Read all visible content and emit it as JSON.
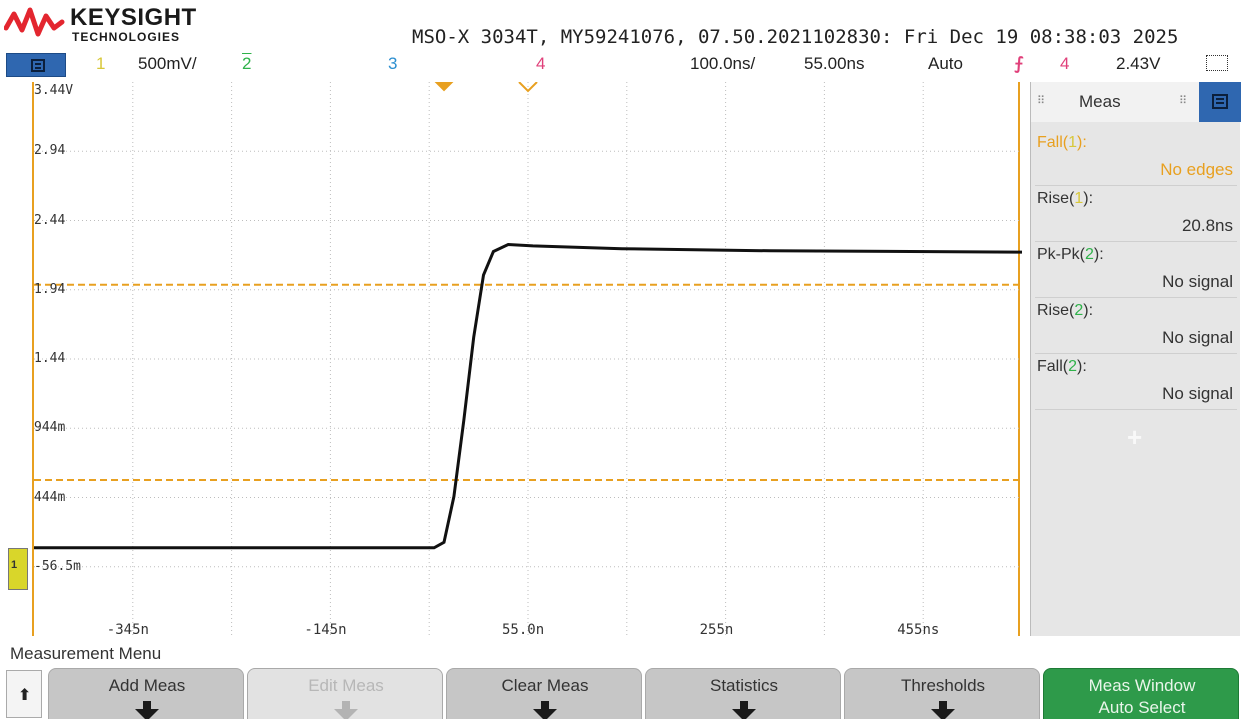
{
  "header": {
    "brand": "KEYSIGHT",
    "brand_sub": "TECHNOLOGIES",
    "info": "MSO-X 3034T, MY59241076, 07.50.2021102830: Fri Dec 19 08:38:03 2025"
  },
  "status_bar": {
    "ch1_label": "1",
    "ch1_scale": "500mV/",
    "ch2_label": "2",
    "ch3_label": "3",
    "ch4_label": "4",
    "timebase": "100.0ns/",
    "delay": "55.00ns",
    "trigger_mode": "Auto",
    "trigger_source": "4",
    "trigger_level": "2.43V"
  },
  "colors": {
    "ch1": "#d8c83a",
    "ch2": "#2fb24a",
    "ch3": "#2c8fd0",
    "ch4": "#e0407a",
    "trigger": "#e8a020",
    "trace": "#111111",
    "accent_blue": "#2f67b0",
    "softkey_green": "#2e9a4a"
  },
  "chart_data": {
    "type": "line",
    "title": "",
    "xlabel": "",
    "ylabel": "",
    "x_tick_labels": [
      "-345n",
      "-145n",
      "55.0n",
      "255n",
      "455ns"
    ],
    "y_tick_labels": [
      "3.44V",
      "2.94",
      "2.44",
      "1.94",
      "1.44",
      "944m",
      "444m",
      "-56.5m"
    ],
    "xlim": [
      -445,
      555
    ],
    "ylim": [
      -556.5,
      3443.5
    ],
    "grid": true,
    "cursors_mV": [
      1980,
      570
    ],
    "series": [
      {
        "x": [
          -445,
          -60,
          -40,
          -30,
          -20,
          -10,
          0,
          10,
          20,
          35,
          60,
          150,
          300,
          555
        ],
        "y": [
          80,
          80,
          80,
          120,
          450,
          1000,
          1600,
          2050,
          2220,
          2270,
          2260,
          2240,
          2225,
          2215
        ]
      }
    ]
  },
  "meas_panel": {
    "title": "Meas",
    "items": [
      {
        "name": "Fall",
        "channel": "1",
        "value": "No edges"
      },
      {
        "name": "Rise",
        "channel": "1",
        "value": "20.8ns"
      },
      {
        "name": "Pk-Pk",
        "channel": "2",
        "value": "No signal"
      },
      {
        "name": "Rise",
        "channel": "2",
        "value": "No signal"
      },
      {
        "name": "Fall",
        "channel": "2",
        "value": "No signal"
      }
    ],
    "add_symbol": "+"
  },
  "softkeys": {
    "menu_label": "Measurement Menu",
    "back_symbol": "⬆",
    "keys": [
      {
        "label": "Add Meas"
      },
      {
        "label": "Edit Meas"
      },
      {
        "label": "Clear Meas"
      },
      {
        "label": "Statistics"
      },
      {
        "label": "Thresholds"
      },
      {
        "label": "Meas Window",
        "label2": "Auto Select"
      }
    ]
  }
}
